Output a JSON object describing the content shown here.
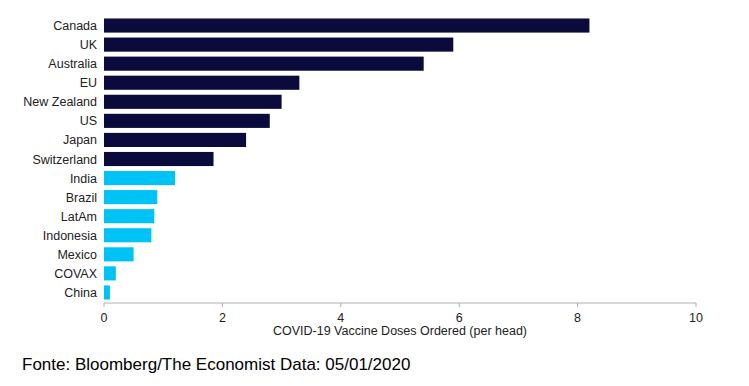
{
  "chart_data": {
    "type": "bar",
    "orientation": "horizontal",
    "categories": [
      "Canada",
      "UK",
      "Australia",
      "EU",
      "New Zealand",
      "US",
      "Japan",
      "Switzerland",
      "India",
      "Brazil",
      "LatAm",
      "Indonesia",
      "Mexico",
      "COVAX",
      "China"
    ],
    "values": [
      8.2,
      5.9,
      5.4,
      3.3,
      3.0,
      2.8,
      2.4,
      1.85,
      1.2,
      0.9,
      0.85,
      0.8,
      0.5,
      0.2,
      0.1
    ],
    "colors": [
      "#0a0a3c",
      "#0a0a3c",
      "#0a0a3c",
      "#0a0a3c",
      "#0a0a3c",
      "#0a0a3c",
      "#0a0a3c",
      "#0a0a3c",
      "#00c3f5",
      "#00c3f5",
      "#00c3f5",
      "#00c3f5",
      "#00c3f5",
      "#00c3f5",
      "#00c3f5"
    ],
    "xlabel": "COVID-19 Vaccine Doses Ordered (per head)",
    "xlim": [
      0,
      10
    ],
    "xticks": [
      0,
      2,
      4,
      6,
      8,
      10
    ],
    "grid": false,
    "source": "Fonte: Bloomberg/The Economist Data: 05/01/2020"
  }
}
